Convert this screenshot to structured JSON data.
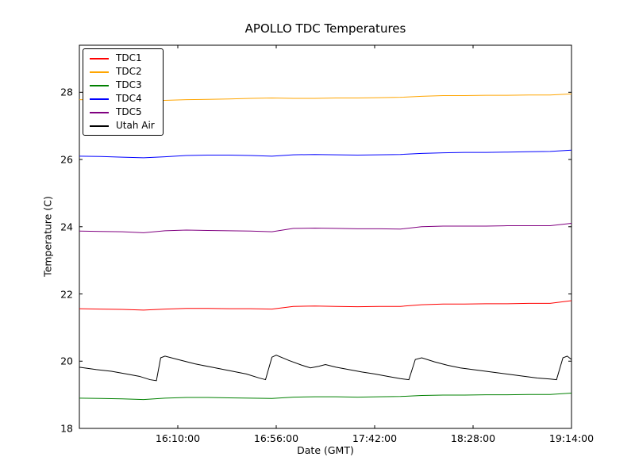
{
  "figure": {
    "title": "APOLLO TDC Temperatures"
  },
  "chart_data": {
    "type": "line",
    "title": "APOLLO TDC Temperatures",
    "xlabel": "Date (GMT)",
    "ylabel": "Temperature (C)",
    "xlim": [
      0,
      230
    ],
    "ylim": [
      18,
      29.4
    ],
    "x_axis_note": "x values are minutes; labeled ticks every 46 minutes ending at 19:14:00",
    "grid": false,
    "x_ticks": [
      {
        "pos": 46,
        "label": "16:10:00"
      },
      {
        "pos": 92,
        "label": "16:56:00"
      },
      {
        "pos": 138,
        "label": "17:42:00"
      },
      {
        "pos": 184,
        "label": "18:28:00"
      },
      {
        "pos": 230,
        "label": "19:14:00"
      }
    ],
    "y_ticks": [
      {
        "pos": 18,
        "label": "18"
      },
      {
        "pos": 20,
        "label": "20"
      },
      {
        "pos": 22,
        "label": "22"
      },
      {
        "pos": 24,
        "label": "24"
      },
      {
        "pos": 26,
        "label": "26"
      },
      {
        "pos": 28,
        "label": "28"
      }
    ],
    "legend": {
      "position": "upper left",
      "entries": [
        "TDC1",
        "TDC2",
        "TDC3",
        "TDC4",
        "TDC5",
        "Utah Air"
      ]
    },
    "x": [
      0,
      10,
      20,
      30,
      40,
      50,
      60,
      70,
      80,
      90,
      100,
      110,
      120,
      130,
      140,
      150,
      160,
      170,
      180,
      190,
      200,
      210,
      220,
      230
    ],
    "series": [
      {
        "name": "TDC1",
        "color": "#ff0000",
        "y": [
          21.56,
          21.55,
          21.54,
          21.52,
          21.55,
          21.57,
          21.57,
          21.56,
          21.56,
          21.55,
          21.63,
          21.64,
          21.63,
          21.62,
          21.63,
          21.63,
          21.68,
          21.7,
          21.7,
          21.71,
          21.71,
          21.72,
          21.72,
          21.8
        ]
      },
      {
        "name": "TDC2",
        "color": "#ffa500",
        "y": [
          27.78,
          27.77,
          27.76,
          27.75,
          27.76,
          27.78,
          27.79,
          27.8,
          27.82,
          27.83,
          27.82,
          27.82,
          27.83,
          27.83,
          27.84,
          27.85,
          27.88,
          27.9,
          27.9,
          27.91,
          27.91,
          27.92,
          27.92,
          27.95
        ]
      },
      {
        "name": "TDC3",
        "color": "#008000",
        "y": [
          18.9,
          18.89,
          18.88,
          18.86,
          18.9,
          18.92,
          18.92,
          18.91,
          18.9,
          18.89,
          18.93,
          18.94,
          18.94,
          18.93,
          18.94,
          18.95,
          18.98,
          18.99,
          18.99,
          19.0,
          19.0,
          19.01,
          19.01,
          19.05
        ]
      },
      {
        "name": "TDC4",
        "color": "#0000ff",
        "y": [
          26.1,
          26.09,
          26.07,
          26.05,
          26.08,
          26.12,
          26.13,
          26.13,
          26.12,
          26.1,
          26.14,
          26.15,
          26.14,
          26.13,
          26.14,
          26.15,
          26.18,
          26.2,
          26.21,
          26.21,
          26.22,
          26.23,
          26.24,
          26.28
        ]
      },
      {
        "name": "TDC5",
        "color": "#800080",
        "y": [
          23.87,
          23.86,
          23.85,
          23.82,
          23.88,
          23.9,
          23.89,
          23.88,
          23.87,
          23.85,
          23.95,
          23.96,
          23.95,
          23.94,
          23.94,
          23.93,
          24.0,
          24.02,
          24.02,
          24.02,
          24.03,
          24.03,
          24.03,
          24.1
        ]
      },
      {
        "name": "Utah Air",
        "color": "#000000",
        "x": [
          0,
          8,
          15,
          22,
          28,
          33,
          36,
          38,
          40,
          46,
          54,
          62,
          70,
          78,
          84,
          87,
          90,
          92,
          98,
          104,
          108,
          112,
          115,
          120,
          126,
          132,
          138,
          144,
          150,
          154,
          157,
          160,
          166,
          172,
          178,
          184,
          190,
          196,
          202,
          208,
          214,
          220,
          223,
          226,
          228,
          230
        ],
        "y": [
          19.82,
          19.75,
          19.7,
          19.62,
          19.55,
          19.45,
          19.42,
          20.1,
          20.15,
          20.05,
          19.92,
          19.82,
          19.72,
          19.62,
          19.5,
          19.45,
          20.12,
          20.18,
          20.02,
          19.88,
          19.8,
          19.85,
          19.9,
          19.82,
          19.75,
          19.68,
          19.62,
          19.55,
          19.48,
          19.45,
          20.05,
          20.1,
          19.98,
          19.88,
          19.8,
          19.75,
          19.7,
          19.65,
          19.6,
          19.55,
          19.5,
          19.47,
          19.45,
          20.1,
          20.15,
          20.05
        ]
      }
    ]
  }
}
